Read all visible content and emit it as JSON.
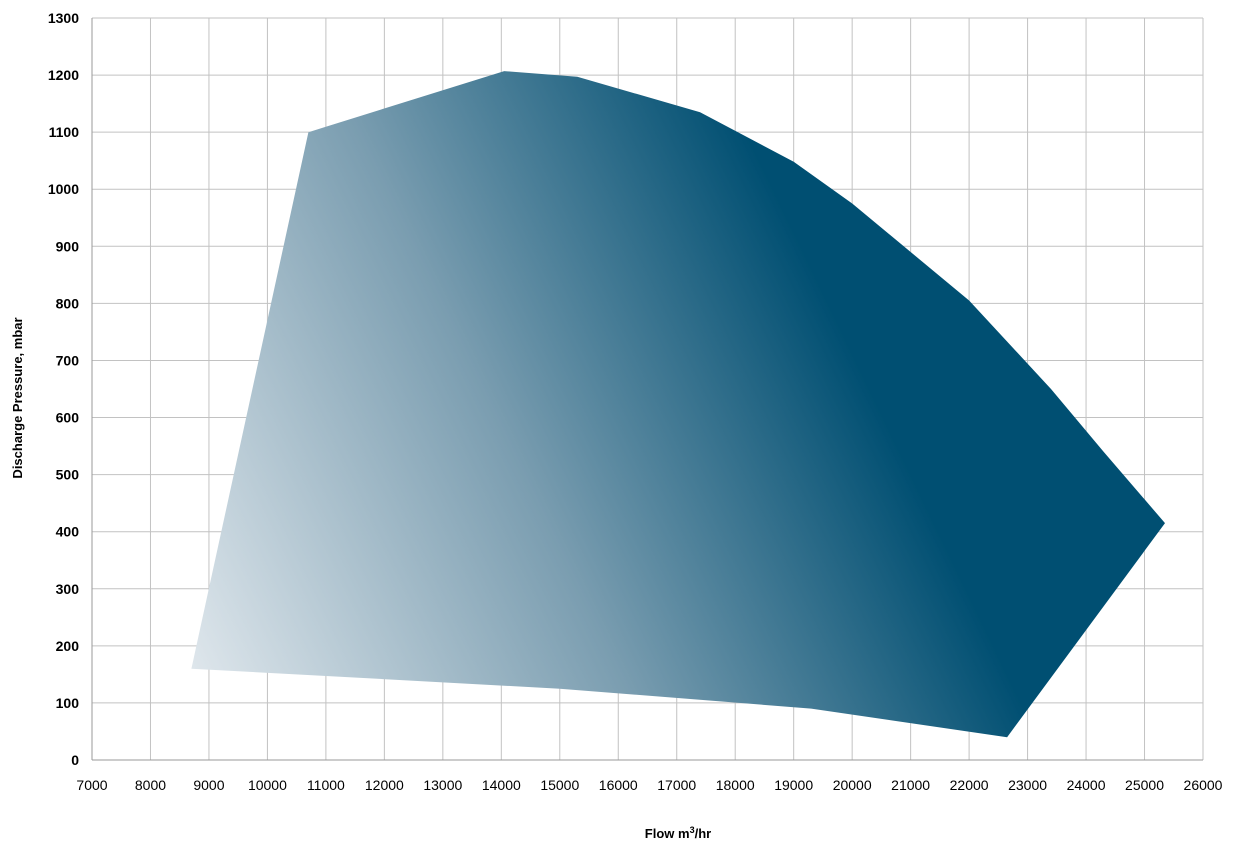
{
  "chart_data": {
    "type": "area",
    "title": "",
    "xlabel": "Flow m",
    "xlabel_sup": "3",
    "xlabel_suffix": "/hr",
    "ylabel": "Discharge Pressure, mbar",
    "xlim": [
      7000,
      26000
    ],
    "ylim": [
      0,
      1300
    ],
    "x_ticks": [
      7000,
      8000,
      9000,
      10000,
      11000,
      12000,
      13000,
      14000,
      15000,
      16000,
      17000,
      18000,
      19000,
      20000,
      21000,
      22000,
      23000,
      24000,
      25000,
      26000
    ],
    "y_ticks": [
      0,
      100,
      200,
      300,
      400,
      500,
      600,
      700,
      800,
      900,
      1000,
      1100,
      1200,
      1300
    ],
    "grid": true,
    "series": [
      {
        "points": [
          {
            "x": 8700,
            "y": 160
          },
          {
            "x": 10700,
            "y": 1100
          },
          {
            "x": 14050,
            "y": 1207
          },
          {
            "x": 15300,
            "y": 1197
          },
          {
            "x": 17400,
            "y": 1135
          },
          {
            "x": 19000,
            "y": 1048
          },
          {
            "x": 20000,
            "y": 975
          },
          {
            "x": 22000,
            "y": 805
          },
          {
            "x": 23400,
            "y": 650
          },
          {
            "x": 24300,
            "y": 540
          },
          {
            "x": 25350,
            "y": 415
          },
          {
            "x": 22650,
            "y": 40
          },
          {
            "x": 19300,
            "y": 90
          },
          {
            "x": 15000,
            "y": 125
          },
          {
            "x": 8700,
            "y": 160
          }
        ]
      }
    ],
    "colors": {
      "fill_start": "#e9eef2",
      "fill_mid": "#7a9db0",
      "fill_end": "#004f72",
      "grid": "#c2c2c2",
      "axis": "#9a9a9a"
    }
  }
}
